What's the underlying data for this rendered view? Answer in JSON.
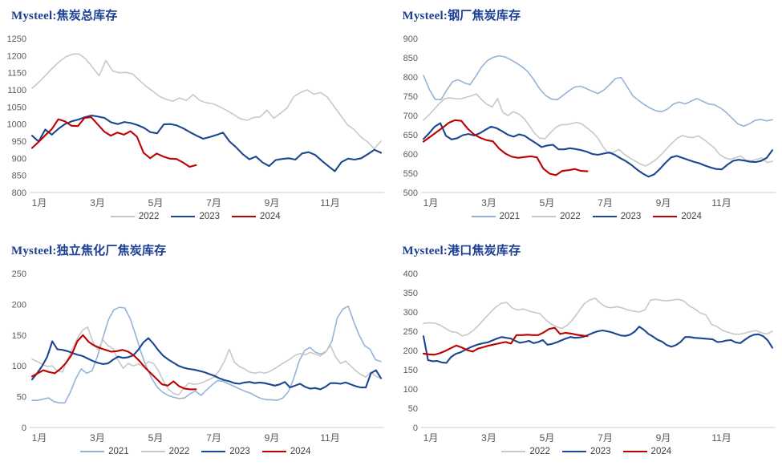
{
  "styles": {
    "background": "#FFFFFF",
    "title_color": "#1C3F94",
    "axis_text_color": "#595959",
    "axis_line_color": "#D6D6D6",
    "legend_text_color": "#404040",
    "year_colors": {
      "2021": "#95B3D7",
      "2022": "#C8C8C8",
      "2023": "#1B4790",
      "2024": "#C00000"
    }
  },
  "chart_data": [
    {
      "id": "coke-total-inventory",
      "type": "line",
      "title": "Mysteel:焦炭总库存",
      "xlabel": "",
      "ylabel": "",
      "ylim": [
        800,
        1250
      ],
      "ytick_step": 50,
      "x_tick_labels": [
        "1月",
        "3月",
        "5月",
        "7月",
        "9月",
        "11月"
      ],
      "grid": false,
      "legend_position": "bottom",
      "series": [
        {
          "name": "2022",
          "color": "#C8C8C8",
          "span": 1,
          "values": [
            1105,
            1122,
            1142,
            1163,
            1181,
            1196,
            1204,
            1205,
            1190,
            1166,
            1141,
            1186,
            1155,
            1150,
            1151,
            1146,
            1128,
            1110,
            1096,
            1081,
            1072,
            1067,
            1076,
            1069,
            1086,
            1069,
            1062,
            1059,
            1050,
            1040,
            1028,
            1016,
            1011,
            1019,
            1021,
            1041,
            1017,
            1031,
            1047,
            1080,
            1092,
            1100,
            1087,
            1092,
            1079,
            1052,
            1025,
            998,
            984,
            962,
            948,
            928,
            950
          ]
        },
        {
          "name": "2023",
          "color": "#1B4790",
          "span": 1,
          "values": [
            966,
            949,
            984,
            969,
            986,
            1000,
            1008,
            1013,
            1020,
            1025,
            1022,
            1018,
            1005,
            1000,
            1006,
            1003,
            997,
            989,
            976,
            973,
            999,
            1000,
            996,
            987,
            976,
            966,
            957,
            962,
            968,
            975,
            949,
            932,
            912,
            897,
            905,
            888,
            877,
            895,
            898,
            900,
            896,
            914,
            918,
            910,
            893,
            877,
            862,
            889,
            899,
            896,
            900,
            912,
            925,
            916
          ]
        },
        {
          "name": "2024",
          "color": "#C00000",
          "span": 0.47,
          "values": [
            930,
            948,
            967,
            985,
            1014,
            1008,
            995,
            994,
            1018,
            1020,
            999,
            978,
            966,
            975,
            969,
            979,
            963,
            916,
            900,
            914,
            905,
            899,
            898,
            888,
            875,
            880
          ]
        }
      ]
    },
    {
      "id": "steel-mill-coke-inventory",
      "type": "line",
      "title": "Mysteel:钢厂焦炭库存",
      "xlabel": "",
      "ylabel": "",
      "ylim": [
        500,
        900
      ],
      "ytick_step": 50,
      "x_tick_labels": [
        "1月",
        "3月",
        "5月",
        "7月",
        "9月",
        "11月"
      ],
      "grid": false,
      "legend_position": "bottom",
      "series": [
        {
          "name": "2021",
          "color": "#95B3D7",
          "span": 1,
          "values": [
            804,
            768,
            742,
            741,
            766,
            788,
            793,
            785,
            780,
            802,
            826,
            843,
            851,
            855,
            852,
            845,
            836,
            826,
            813,
            792,
            769,
            752,
            743,
            741,
            752,
            764,
            774,
            776,
            770,
            763,
            757,
            766,
            780,
            796,
            799,
            775,
            751,
            739,
            728,
            719,
            712,
            710,
            717,
            730,
            735,
            730,
            737,
            744,
            737,
            730,
            728,
            720,
            709,
            694,
            679,
            672,
            678,
            687,
            690,
            686,
            689
          ]
        },
        {
          "name": "2022",
          "color": "#C8C8C8",
          "span": 1,
          "values": [
            688,
            701,
            716,
            731,
            744,
            746,
            744,
            743,
            747,
            751,
            756,
            741,
            729,
            722,
            744,
            708,
            700,
            710,
            704,
            693,
            674,
            654,
            641,
            640,
            655,
            669,
            676,
            676,
            679,
            682,
            678,
            667,
            656,
            641,
            618,
            601,
            605,
            612,
            599,
            590,
            582,
            574,
            569,
            576,
            586,
            599,
            614,
            628,
            641,
            648,
            644,
            643,
            647,
            638,
            627,
            616,
            599,
            590,
            586,
            590,
            595,
            584,
            582,
            586,
            590,
            578,
            581
          ]
        },
        {
          "name": "2023",
          "color": "#1B4790",
          "span": 1,
          "values": [
            639,
            654,
            671,
            680,
            647,
            638,
            641,
            649,
            652,
            648,
            654,
            663,
            671,
            667,
            659,
            650,
            645,
            651,
            647,
            637,
            628,
            618,
            622,
            624,
            612,
            612,
            615,
            613,
            610,
            606,
            600,
            598,
            601,
            604,
            598,
            589,
            581,
            571,
            559,
            549,
            541,
            547,
            561,
            577,
            591,
            595,
            590,
            585,
            580,
            576,
            570,
            565,
            561,
            560,
            572,
            582,
            585,
            583,
            580,
            579,
            582,
            590,
            610
          ]
        },
        {
          "name": "2024",
          "color": "#C00000",
          "span": 0.47,
          "values": [
            632,
            644,
            656,
            668,
            681,
            688,
            686,
            666,
            651,
            642,
            636,
            633,
            614,
            601,
            593,
            590,
            592,
            594,
            591,
            562,
            549,
            545,
            556,
            558,
            561,
            556,
            555
          ]
        }
      ]
    },
    {
      "id": "independent-coking-plant-coke-inventory",
      "type": "line",
      "title": "Mysteel:独立焦化厂焦炭库存",
      "xlabel": "",
      "ylabel": "",
      "ylim": [
        0,
        250
      ],
      "ytick_step": 50,
      "x_tick_labels": [
        "1月",
        "3月",
        "5月",
        "7月",
        "9月",
        "11月"
      ],
      "grid": false,
      "legend_position": "bottom",
      "series": [
        {
          "name": "2021",
          "color": "#95B3D7",
          "span": 1,
          "values": [
            44,
            44,
            46,
            48,
            42,
            40,
            40,
            57,
            79,
            95,
            88,
            92,
            116,
            146,
            175,
            191,
            195,
            194,
            177,
            150,
            122,
            98,
            79,
            65,
            57,
            52,
            49,
            47,
            48,
            55,
            59,
            52,
            61,
            69,
            76,
            75,
            71,
            67,
            63,
            59,
            56,
            51,
            47,
            45,
            45,
            44,
            48,
            58,
            80,
            108,
            125,
            130,
            122,
            119,
            124,
            140,
            178,
            192,
            197,
            172,
            150,
            133,
            127,
            110,
            107
          ]
        },
        {
          "name": "2022",
          "color": "#C8C8C8",
          "span": 1,
          "values": [
            111,
            107,
            103,
            99,
            100,
            92,
            90,
            110,
            128,
            145,
            158,
            163,
            139,
            126,
            142,
            133,
            128,
            110,
            96,
            104,
            100,
            103,
            99,
            107,
            104,
            92,
            75,
            62,
            55,
            53,
            64,
            72,
            70,
            71,
            74,
            78,
            82,
            92,
            107,
            127,
            106,
            99,
            95,
            90,
            88,
            90,
            88,
            91,
            96,
            101,
            106,
            111,
            117,
            120,
            118,
            122,
            119,
            116,
            122,
            133,
            115,
            104,
            108,
            100,
            92,
            86,
            82,
            90,
            83,
            80
          ]
        },
        {
          "name": "2023",
          "color": "#1B4790",
          "span": 1,
          "values": [
            78,
            88,
            100,
            115,
            140,
            127,
            126,
            124,
            121,
            118,
            116,
            112,
            108,
            105,
            103,
            104,
            110,
            115,
            113,
            114,
            117,
            126,
            138,
            145,
            136,
            125,
            116,
            110,
            105,
            100,
            97,
            95,
            94,
            92,
            90,
            87,
            84,
            80,
            77,
            75,
            72,
            71,
            73,
            74,
            72,
            73,
            72,
            70,
            68,
            70,
            74,
            65,
            68,
            71,
            66,
            63,
            64,
            62,
            66,
            72,
            72,
            71,
            73,
            70,
            67,
            65,
            65,
            88,
            93,
            80
          ]
        },
        {
          "name": "2024",
          "color": "#C00000",
          "span": 0.47,
          "values": [
            83,
            88,
            93,
            90,
            88,
            95,
            105,
            118,
            140,
            150,
            139,
            133,
            129,
            126,
            123,
            124,
            126,
            123,
            117,
            108,
            97,
            88,
            79,
            70,
            68,
            75,
            67,
            63,
            62,
            62
          ]
        }
      ]
    },
    {
      "id": "port-coke-inventory",
      "type": "line",
      "title": "Mysteel:港口焦炭库存",
      "xlabel": "",
      "ylabel": "",
      "ylim": [
        0,
        400
      ],
      "ytick_step": 50,
      "x_tick_labels": [
        "1月",
        "3月",
        "5月",
        "7月",
        "9月",
        "11月"
      ],
      "grid": false,
      "legend_position": "bottom",
      "series": [
        {
          "name": "2022",
          "color": "#C8C8C8",
          "span": 1,
          "values": [
            270,
            272,
            271,
            266,
            257,
            249,
            247,
            238,
            242,
            252,
            266,
            282,
            298,
            312,
            322,
            325,
            311,
            305,
            308,
            303,
            299,
            296,
            281,
            269,
            262,
            257,
            266,
            281,
            301,
            321,
            331,
            336,
            322,
            313,
            311,
            314,
            310,
            305,
            302,
            300,
            306,
            331,
            333,
            330,
            329,
            331,
            333,
            329,
            316,
            308,
            297,
            293,
            268,
            262,
            252,
            247,
            243,
            242,
            245,
            249,
            252,
            246,
            243,
            250
          ]
        },
        {
          "name": "2023",
          "color": "#1B4790",
          "span": 1,
          "values": [
            237,
            175,
            172,
            173,
            169,
            168,
            183,
            191,
            195,
            201,
            207,
            212,
            216,
            219,
            221,
            226,
            231,
            235,
            233,
            231,
            225,
            220,
            222,
            225,
            219,
            222,
            227,
            215,
            217,
            221,
            226,
            231,
            235,
            233,
            234,
            236,
            241,
            246,
            250,
            252,
            250,
            247,
            243,
            239,
            238,
            241,
            249,
            262,
            254,
            243,
            236,
            228,
            223,
            214,
            210,
            214,
            222,
            235,
            235,
            233,
            232,
            231,
            230,
            229,
            222,
            223,
            226,
            227,
            221,
            219,
            228,
            236,
            241,
            242,
            237,
            226,
            207
          ]
        },
        {
          "name": "2024",
          "color": "#C00000",
          "span": 0.47,
          "values": [
            192,
            190,
            189,
            193,
            199,
            206,
            213,
            208,
            201,
            197,
            205,
            209,
            213,
            216,
            219,
            222,
            218,
            240,
            240,
            241,
            240,
            240,
            247,
            256,
            259,
            243,
            246,
            244,
            241,
            239,
            237
          ]
        }
      ]
    }
  ]
}
